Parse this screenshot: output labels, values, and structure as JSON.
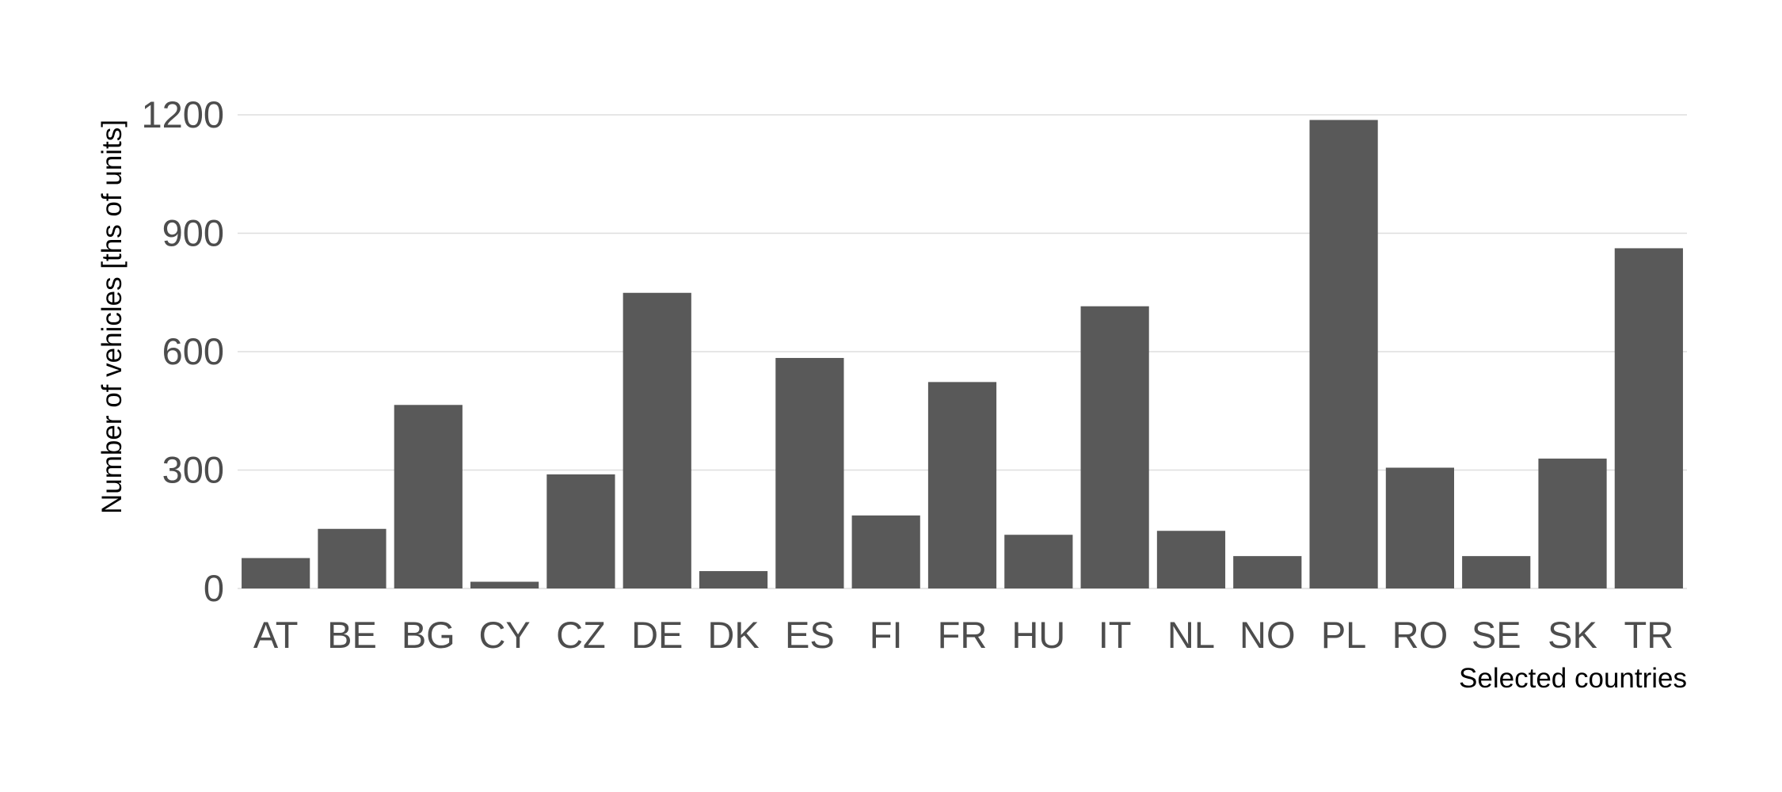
{
  "chart_data": {
    "type": "bar",
    "title": "",
    "xlabel": "Selected countries",
    "ylabel": "Number of vehicles [ths of units]",
    "categories": [
      "AT",
      "BE",
      "BG",
      "CY",
      "CZ",
      "DE",
      "DK",
      "ES",
      "FI",
      "FR",
      "HU",
      "IT",
      "NL",
      "NO",
      "PL",
      "RO",
      "SE",
      "SK",
      "TR"
    ],
    "values": [
      77,
      151,
      465,
      17,
      289,
      749,
      44,
      584,
      185,
      523,
      136,
      715,
      146,
      82,
      1187,
      306,
      82,
      329,
      862
    ],
    "ylim": [
      0,
      1200
    ],
    "yticks": [
      0,
      300,
      600,
      900,
      1200
    ],
    "grid": true,
    "legend": "none",
    "colors": {
      "bar": "#595959",
      "grid": "#dedede",
      "tick_text": "#4d4d4d",
      "axis_title": "#000000"
    }
  }
}
